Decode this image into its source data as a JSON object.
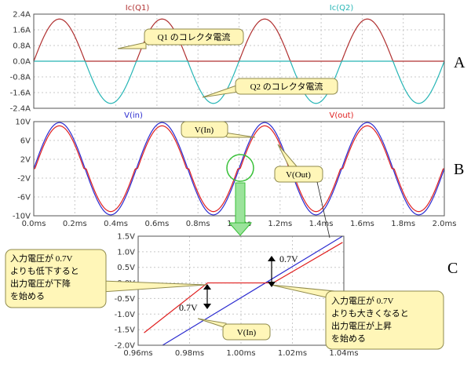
{
  "chart_data": [
    {
      "id": "A",
      "type": "line",
      "panel_label": "A",
      "xlim": [
        0,
        2.0
      ],
      "ylim": [
        -2.4,
        2.4
      ],
      "yticks": [
        "2.4A",
        "1.6A",
        "0.8A",
        "0.0A",
        "-0.8A",
        "-1.6A",
        "-2.4A"
      ],
      "ytick_values": [
        2.4,
        1.6,
        0.8,
        0.0,
        -0.8,
        -1.6,
        -2.4
      ],
      "series": [
        {
          "name": "Ic(Q1)",
          "color": "#b03030",
          "frequency_khz": 2,
          "amplitude": 2.15,
          "part": "positive"
        },
        {
          "name": "Ic(Q2)",
          "color": "#26b5b5",
          "frequency_khz": 2,
          "amplitude": 2.15,
          "part": "negative"
        }
      ],
      "annotations": [
        "Q1 のコレクタ電流",
        "Q2 のコレクタ電流"
      ]
    },
    {
      "id": "B",
      "type": "line",
      "panel_label": "B",
      "xlim": [
        0,
        2.0
      ],
      "ylim": [
        -10,
        10
      ],
      "yticks": [
        "10V",
        "6V",
        "2V",
        "-2V",
        "-6V",
        "-10V"
      ],
      "ytick_values": [
        10,
        6,
        2,
        -2,
        -6,
        -10
      ],
      "xticks": [
        "0.0ms",
        "0.2ms",
        "0.4ms",
        "0.6ms",
        "0.8ms",
        "1.0ms",
        "1.2ms",
        "1.4ms",
        "1.6ms",
        "1.8ms",
        "2.0ms"
      ],
      "xtick_values": [
        0,
        0.2,
        0.4,
        0.6,
        0.8,
        1.0,
        1.2,
        1.4,
        1.6,
        1.8,
        2.0
      ],
      "series": [
        {
          "name": "V(in)",
          "color": "#2b2bd0",
          "frequency_khz": 2,
          "amplitude": 9.8
        },
        {
          "name": "V(out)",
          "color": "#e02020",
          "frequency_khz": 2,
          "amplitude": 9.1,
          "dead_zone": 0.7
        }
      ],
      "annotations": [
        "V(In)",
        "V(Out)"
      ]
    },
    {
      "id": "C",
      "type": "line",
      "panel_label": "C",
      "xlim": [
        0.96,
        1.04
      ],
      "ylim": [
        -2.0,
        1.5
      ],
      "yticks": [
        "1.5V",
        "1.0V",
        "0.5V",
        "0.0V",
        "-0.5V",
        "-1.0V",
        "-1.5V",
        "-2.0V"
      ],
      "ytick_values": [
        1.5,
        1.0,
        0.5,
        0.0,
        -0.5,
        -1.0,
        -1.5,
        -2.0
      ],
      "xticks": [
        "0.96ms",
        "0.98ms",
        "1.00ms",
        "1.02ms",
        "1.04ms"
      ],
      "xtick_values": [
        0.96,
        0.98,
        1.0,
        1.02,
        1.04
      ],
      "series": [
        {
          "name": "V(in)",
          "color": "#2b2bd0",
          "points": [
            [
              0.9695,
              -2.0
            ],
            [
              0.9895,
              -1.0
            ],
            [
              1.0095,
              0.0
            ],
            [
              1.0395,
              1.5
            ]
          ]
        },
        {
          "name": "V(out)",
          "color": "#e02020",
          "points": [
            [
              0.9623,
              -1.6
            ],
            [
              0.987,
              0.0
            ],
            [
              1.0125,
              0.0
            ],
            [
              1.0395,
              1.3
            ]
          ]
        }
      ],
      "annotations": [
        "0.7V",
        "0.7V",
        "V(In)"
      ]
    }
  ],
  "callouts": {
    "q1": "Q1 のコレクタ電流",
    "q2": "Q2 のコレクタ電流",
    "vin_b": "V(In)",
    "vout_b": "V(Out)",
    "vin_c": "V(In)",
    "left_note": [
      "入力電圧が 0.7V",
      "よりも低下すると",
      "出力電圧が下降",
      "を始める"
    ],
    "right_note": [
      "入力電圧が 0.7V",
      "よりも大きくなると",
      "出力電圧が上昇",
      "を始める"
    ],
    "diff_top": "0.7V",
    "diff_bottom": "0.7V"
  },
  "colors": {
    "q1": "#b03030",
    "q2": "#26b5b5",
    "vin": "#2b2bd0",
    "vout": "#e02020",
    "callout_fill": "#fff6b8",
    "zoom_marker": "#38c038"
  }
}
